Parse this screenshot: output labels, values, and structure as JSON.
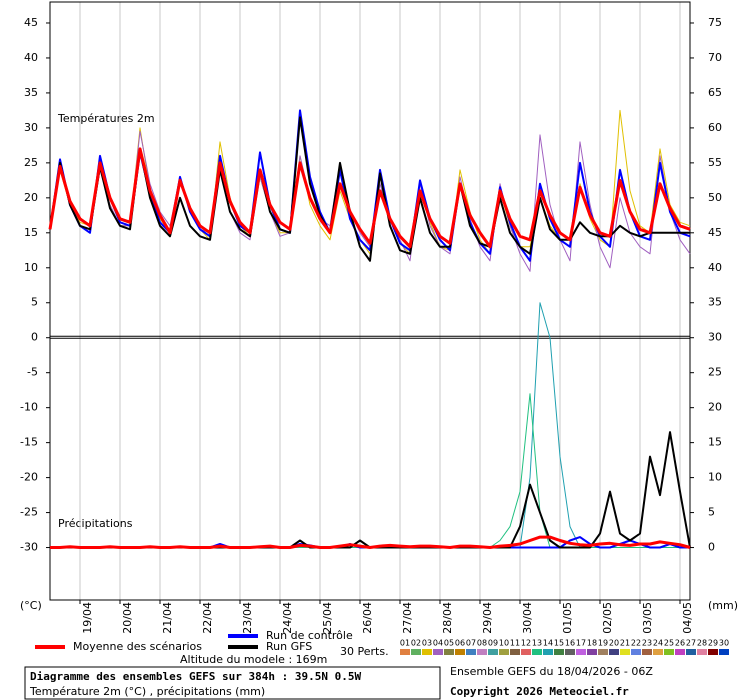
{
  "chart_data": {
    "type": "line",
    "title": "Diagramme des ensembles GEFS sur 384h : 39.5N 0.5W",
    "subtitle": "Température 2m (°C) , précipitations (mm)",
    "run_info": "Ensemble GEFS du 18/04/2026 - 06Z",
    "copyright": "Copyright 2026 Meteociel.fr",
    "altitude": "Altitude du modele : 169m",
    "panel_labels": [
      "Températures 2m",
      "Précipitations"
    ],
    "y_label": "(°C)",
    "y2_label": "(mm)",
    "perturbations_label": "30 Perts.",
    "perturbation_legend": [
      {
        "name": "01",
        "color": "#e08040"
      },
      {
        "name": "02",
        "color": "#60b060"
      },
      {
        "name": "03",
        "color": "#e0c000"
      },
      {
        "name": "04",
        "color": "#a060c0"
      },
      {
        "name": "05",
        "color": "#808040"
      },
      {
        "name": "06",
        "color": "#c08000"
      },
      {
        "name": "07",
        "color": "#4080c0"
      },
      {
        "name": "08",
        "color": "#c080c0"
      },
      {
        "name": "09",
        "color": "#40a0a0"
      },
      {
        "name": "10",
        "color": "#a0a040"
      },
      {
        "name": "11",
        "color": "#806040"
      },
      {
        "name": "12",
        "color": "#e06060"
      },
      {
        "name": "13",
        "color": "#20c080"
      },
      {
        "name": "14",
        "color": "#20a0b0"
      },
      {
        "name": "15",
        "color": "#408040"
      },
      {
        "name": "16",
        "color": "#606060"
      },
      {
        "name": "17",
        "color": "#c060e0"
      },
      {
        "name": "18",
        "color": "#8040a0"
      },
      {
        "name": "19",
        "color": "#a08060"
      },
      {
        "name": "20",
        "color": "#404080"
      },
      {
        "name": "21",
        "color": "#e0e020"
      },
      {
        "name": "22",
        "color": "#6080e0"
      },
      {
        "name": "23",
        "color": "#a06040"
      },
      {
        "name": "24",
        "color": "#e0a040"
      },
      {
        "name": "25",
        "color": "#80c020"
      },
      {
        "name": "26",
        "color": "#c040c0"
      },
      {
        "name": "27",
        "color": "#2060a0"
      },
      {
        "name": "28",
        "color": "#e080a0"
      },
      {
        "name": "29",
        "color": "#800000"
      },
      {
        "name": "30",
        "color": "#0040c0"
      }
    ],
    "x": [
      0,
      6,
      12,
      18,
      24,
      30,
      36,
      42,
      48,
      54,
      60,
      66,
      72,
      78,
      84,
      90,
      96,
      102,
      108,
      114,
      120,
      126,
      132,
      138,
      144,
      150,
      156,
      162,
      168,
      174,
      180,
      186,
      192,
      198,
      204,
      210,
      216,
      222,
      228,
      234,
      240,
      246,
      252,
      258,
      264,
      270,
      276,
      282,
      288,
      294,
      300,
      306,
      312,
      318,
      324,
      330,
      336,
      342,
      348,
      354,
      360,
      366,
      372,
      378,
      384
    ],
    "xlim": [
      0,
      384
    ],
    "xticks": [
      {
        "value": 18,
        "label": "19/04"
      },
      {
        "value": 42,
        "label": "20/04"
      },
      {
        "value": 66,
        "label": "21/04"
      },
      {
        "value": 90,
        "label": "22/04"
      },
      {
        "value": 114,
        "label": "23/04"
      },
      {
        "value": 138,
        "label": "24/04"
      },
      {
        "value": 162,
        "label": "25/04"
      },
      {
        "value": 186,
        "label": "26/04"
      },
      {
        "value": 210,
        "label": "27/04"
      },
      {
        "value": 234,
        "label": "28/04"
      },
      {
        "value": 258,
        "label": "29/04"
      },
      {
        "value": 282,
        "label": "30/04"
      },
      {
        "value": 306,
        "label": "01/05"
      },
      {
        "value": 330,
        "label": "02/05"
      },
      {
        "value": 354,
        "label": "03/05"
      },
      {
        "value": 378,
        "label": "04/05"
      }
    ],
    "ylim": [
      -37.5,
      48
    ],
    "yticks": [
      -30,
      -25,
      -20,
      -15,
      -10,
      -5,
      0,
      5,
      10,
      15,
      20,
      25,
      30,
      35,
      40,
      45
    ],
    "y2lim": [
      -7.5,
      78
    ],
    "y2ticks": [
      0,
      5,
      10,
      15,
      20,
      25,
      30,
      35,
      40,
      45,
      50,
      55,
      60,
      65,
      70,
      75
    ],
    "grid": true,
    "series": [
      {
        "name": "Moyenne des scénarios",
        "color": "#ff0000",
        "values": [
          15.5,
          24.5,
          19.5,
          17,
          16,
          25,
          20,
          17,
          16.5,
          27,
          21,
          17.5,
          15,
          22.5,
          18.5,
          16,
          15,
          25,
          19.5,
          16.5,
          15,
          24,
          19,
          16.5,
          15.5,
          25,
          20,
          17,
          15,
          22,
          18,
          15.5,
          13.5,
          21,
          17,
          14.5,
          13,
          21,
          17,
          14.5,
          13.5,
          22,
          17.5,
          15,
          13,
          21,
          17,
          14.5,
          14,
          21,
          17.5,
          15,
          14,
          21.5,
          17.5,
          15,
          14.5,
          22.5,
          18,
          15.5,
          15,
          22,
          18.5,
          16,
          15.5
        ]
      },
      {
        "name": "Run de contrôle",
        "color": "#0000ff",
        "values": [
          15.5,
          25.5,
          19,
          16,
          15,
          26,
          20,
          16.5,
          16,
          26.5,
          20.5,
          16.5,
          15,
          23,
          18,
          15.5,
          14.5,
          26,
          19.5,
          16,
          15,
          26.5,
          19,
          15.5,
          15,
          32.5,
          23,
          18,
          15,
          24,
          17,
          14,
          12.5,
          24,
          17,
          13.5,
          12.5,
          22.5,
          17,
          14,
          12.5,
          22,
          16.5,
          13.5,
          12,
          21.5,
          16.5,
          13,
          11,
          22,
          17,
          14,
          13,
          25,
          18,
          14.5,
          13,
          24,
          18,
          14.5,
          14,
          25,
          18,
          15,
          14.5
        ]
      },
      {
        "name": "Run GFS",
        "color": "#000000",
        "values": [
          15.5,
          25,
          19,
          16,
          15.5,
          24.5,
          18.5,
          16,
          15.5,
          27,
          20,
          16,
          14.5,
          20,
          16,
          14.5,
          14,
          24,
          18,
          15.5,
          14.5,
          24,
          18,
          15.5,
          15,
          31.5,
          22,
          17.5,
          15,
          25,
          18,
          13,
          11,
          23.5,
          16,
          12.5,
          12,
          20,
          15,
          13,
          13,
          22,
          16,
          13.5,
          13,
          20,
          15,
          13,
          12,
          20,
          15.5,
          14,
          14,
          16.5,
          15,
          14.5,
          14.5,
          16,
          15,
          14.5,
          15,
          15,
          15,
          15,
          15
        ]
      },
      {
        "color": "#e0c000",
        "values": [
          15.5,
          24,
          19,
          16.5,
          16,
          24.5,
          19,
          16,
          16,
          30,
          21,
          17,
          15,
          23,
          18,
          15.5,
          14,
          28,
          20,
          16,
          14.5,
          23,
          18,
          15,
          15,
          26,
          19,
          16,
          14,
          21,
          17,
          14,
          12,
          23,
          17,
          13.5,
          12,
          22,
          16.5,
          13,
          12.5,
          24,
          18,
          14,
          12,
          21,
          16,
          13,
          13,
          20,
          16,
          14,
          13,
          22,
          17,
          14,
          13,
          32.5,
          21,
          16,
          15,
          27,
          19,
          16.5,
          16
        ]
      },
      {
        "color": "#a060c0",
        "values": [
          15.5,
          25,
          19.5,
          16,
          15.5,
          24,
          19,
          16,
          16,
          29.5,
          22,
          18,
          16,
          23,
          18,
          15.5,
          15,
          24,
          18,
          15,
          14,
          23,
          18,
          14.5,
          15,
          26,
          20,
          17,
          16,
          25,
          18,
          15,
          13,
          22,
          17,
          14,
          11,
          22,
          16,
          13,
          12,
          23,
          17,
          13,
          11,
          22,
          16,
          12,
          9.5,
          29,
          19,
          14,
          11,
          28,
          19,
          13,
          10,
          20,
          15,
          13,
          12,
          26,
          18,
          14,
          12
        ]
      },
      {
        "axis": "y2",
        "color": "#ff0000",
        "values": [
          0,
          0,
          0.1,
          0,
          0,
          0,
          0.1,
          0,
          0,
          0,
          0.1,
          0,
          0,
          0.1,
          0,
          0,
          0,
          0.2,
          0,
          0,
          0,
          0.1,
          0.2,
          0,
          0,
          0.3,
          0.2,
          0,
          0,
          0.2,
          0.4,
          0.2,
          0,
          0.2,
          0.3,
          0.2,
          0.1,
          0.2,
          0.2,
          0.1,
          0,
          0.2,
          0.2,
          0.1,
          0,
          0.2,
          0.3,
          0.5,
          1,
          1.5,
          1.5,
          1,
          0.6,
          0.4,
          0.3,
          0.5,
          0.6,
          0.4,
          0.3,
          0.5,
          0.5,
          0.8,
          0.6,
          0.4,
          0
        ]
      },
      {
        "axis": "y2",
        "color": "#0000ff",
        "values": [
          0,
          0,
          0,
          0,
          0,
          0,
          0,
          0,
          0,
          0,
          0,
          0,
          0,
          0,
          0,
          0,
          0,
          0.5,
          0,
          0,
          0,
          0,
          0,
          0,
          0,
          0.5,
          0.3,
          0,
          0,
          0,
          0.5,
          0,
          0,
          0,
          0,
          0,
          0,
          0,
          0,
          0,
          0,
          0,
          0,
          0,
          0,
          0,
          0,
          0,
          0,
          0,
          0,
          0,
          1,
          1.5,
          0.5,
          0,
          0,
          0.5,
          1,
          0.5,
          0,
          0,
          0.5,
          0,
          0
        ]
      },
      {
        "axis": "y2",
        "color": "#000000",
        "values": [
          0,
          0,
          0,
          0,
          0,
          0,
          0,
          0,
          0,
          0,
          0,
          0,
          0,
          0,
          0,
          0,
          0,
          0,
          0,
          0,
          0,
          0,
          0,
          0,
          0,
          1,
          0,
          0,
          0,
          0,
          0,
          1,
          0,
          0,
          0,
          0,
          0,
          0,
          0,
          0,
          0,
          0,
          0,
          0,
          0,
          0,
          0,
          3,
          9,
          5,
          1,
          0,
          0,
          0,
          0,
          2,
          8,
          2,
          1,
          2,
          13,
          7.5,
          16.5,
          8,
          0
        ]
      },
      {
        "axis": "y2",
        "color": "#20a0b0",
        "values": [
          0,
          0,
          0,
          0,
          0,
          0,
          0,
          0,
          0,
          0,
          0,
          0,
          0,
          0,
          0,
          0,
          0,
          0,
          0,
          0,
          0,
          0,
          0,
          0,
          0,
          0.5,
          0,
          0,
          0,
          0,
          0,
          0,
          0,
          0,
          0,
          0,
          0,
          0,
          0,
          0,
          0,
          0,
          0,
          0,
          0,
          0,
          0,
          0,
          10,
          35,
          30,
          13,
          3,
          0,
          0,
          0,
          0,
          0,
          0,
          0,
          0,
          0,
          0,
          0,
          0
        ]
      },
      {
        "axis": "y2",
        "color": "#20c080",
        "values": [
          0,
          0,
          0,
          0,
          0,
          0,
          0,
          0,
          0,
          0,
          0,
          0,
          0,
          0,
          0,
          0,
          0,
          0,
          0,
          0,
          0,
          0,
          0,
          0,
          0,
          0,
          0,
          0,
          0,
          0,
          0,
          0,
          0,
          0,
          0,
          0,
          0,
          0,
          0,
          0,
          0,
          0,
          0,
          0,
          0,
          1,
          3,
          8,
          22,
          5,
          0,
          0,
          0,
          0,
          0,
          0,
          0,
          0,
          0,
          0,
          0,
          0,
          0,
          0,
          0
        ]
      }
    ]
  }
}
